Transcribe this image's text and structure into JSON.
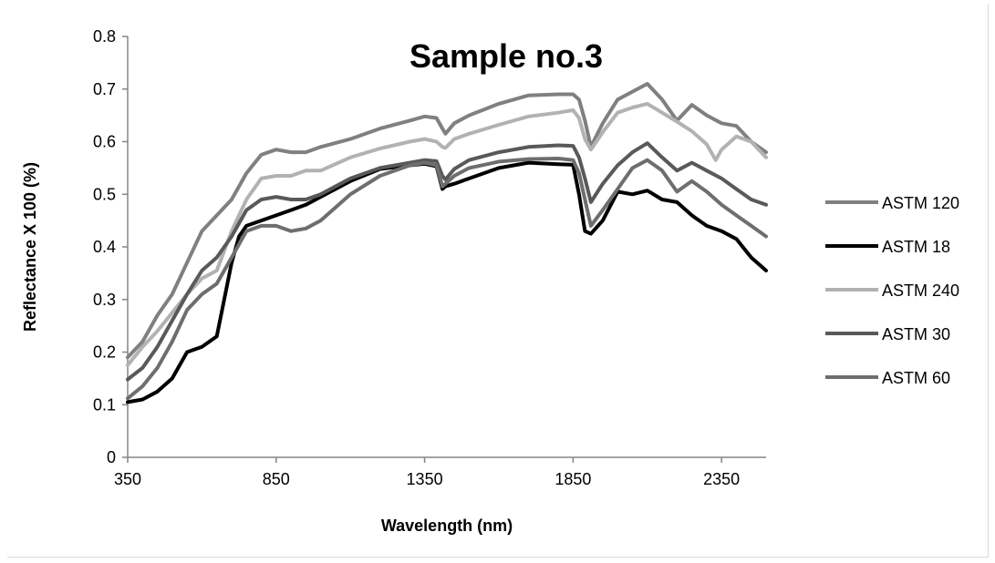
{
  "chart_data": {
    "type": "line",
    "title": "Sample no.3",
    "xlabel": "Wavelength (nm)",
    "ylabel": "Reflectance X 100  (%)",
    "xlim": [
      350,
      2500
    ],
    "ylim": [
      0,
      0.8
    ],
    "xticks": [
      350,
      850,
      1350,
      1850,
      2350
    ],
    "xtick_labels": [
      "350",
      "850",
      "1350",
      "1850",
      "2350"
    ],
    "yticks": [
      0,
      0.1,
      0.2,
      0.3,
      0.4,
      0.5,
      0.6,
      0.7,
      0.8
    ],
    "ytick_labels": [
      "0",
      "0.1",
      "0.2",
      "0.3",
      "0.4",
      "0.5",
      "0.6",
      "0.7",
      "0.8"
    ],
    "grid": false,
    "legend_position": "right",
    "series": [
      {
        "name": "ASTM 120",
        "color": "#808080",
        "x": [
          350,
          400,
          450,
          500,
          550,
          600,
          650,
          700,
          750,
          800,
          850,
          900,
          950,
          1000,
          1100,
          1200,
          1300,
          1350,
          1390,
          1410,
          1420,
          1450,
          1500,
          1600,
          1700,
          1800,
          1850,
          1870,
          1890,
          1910,
          1950,
          2000,
          2050,
          2100,
          2150,
          2200,
          2250,
          2300,
          2350,
          2400,
          2450,
          2500
        ],
        "y": [
          0.19,
          0.22,
          0.27,
          0.31,
          0.37,
          0.43,
          0.46,
          0.49,
          0.54,
          0.575,
          0.585,
          0.58,
          0.58,
          0.59,
          0.605,
          0.625,
          0.64,
          0.648,
          0.645,
          0.625,
          0.615,
          0.635,
          0.65,
          0.672,
          0.688,
          0.69,
          0.69,
          0.68,
          0.64,
          0.59,
          0.635,
          0.68,
          0.695,
          0.71,
          0.68,
          0.64,
          0.67,
          0.65,
          0.635,
          0.63,
          0.6,
          0.58
        ]
      },
      {
        "name": "ASTM 18",
        "color": "#000000",
        "x": [
          350,
          400,
          450,
          500,
          550,
          600,
          650,
          700,
          725,
          750,
          800,
          850,
          900,
          950,
          1000,
          1100,
          1200,
          1300,
          1350,
          1390,
          1410,
          1420,
          1450,
          1500,
          1600,
          1700,
          1800,
          1850,
          1870,
          1890,
          1910,
          1950,
          2000,
          2050,
          2100,
          2150,
          2200,
          2250,
          2300,
          2350,
          2400,
          2450,
          2500
        ],
        "y": [
          0.105,
          0.11,
          0.125,
          0.15,
          0.2,
          0.21,
          0.23,
          0.37,
          0.42,
          0.44,
          0.45,
          0.46,
          0.47,
          0.48,
          0.495,
          0.525,
          0.548,
          0.555,
          0.558,
          0.553,
          0.51,
          0.515,
          0.52,
          0.53,
          0.55,
          0.56,
          0.557,
          0.556,
          0.5,
          0.43,
          0.425,
          0.45,
          0.505,
          0.5,
          0.507,
          0.49,
          0.485,
          0.46,
          0.44,
          0.43,
          0.415,
          0.38,
          0.355
        ]
      },
      {
        "name": "ASTM 240",
        "color": "#b2b2b2",
        "x": [
          350,
          400,
          450,
          500,
          550,
          600,
          650,
          700,
          750,
          800,
          850,
          900,
          950,
          1000,
          1100,
          1200,
          1300,
          1350,
          1390,
          1410,
          1420,
          1450,
          1500,
          1600,
          1700,
          1800,
          1850,
          1870,
          1890,
          1910,
          1950,
          2000,
          2050,
          2100,
          2150,
          2200,
          2250,
          2300,
          2330,
          2350,
          2400,
          2450,
          2500
        ],
        "y": [
          0.175,
          0.21,
          0.24,
          0.275,
          0.31,
          0.34,
          0.355,
          0.43,
          0.49,
          0.53,
          0.535,
          0.535,
          0.545,
          0.545,
          0.57,
          0.587,
          0.6,
          0.605,
          0.6,
          0.59,
          0.588,
          0.605,
          0.615,
          0.632,
          0.648,
          0.655,
          0.66,
          0.645,
          0.605,
          0.585,
          0.618,
          0.655,
          0.665,
          0.672,
          0.655,
          0.638,
          0.62,
          0.595,
          0.565,
          0.585,
          0.61,
          0.6,
          0.57
        ]
      },
      {
        "name": "ASTM 30",
        "color": "#595959",
        "x": [
          350,
          400,
          450,
          500,
          550,
          600,
          650,
          700,
          750,
          800,
          850,
          900,
          950,
          1000,
          1100,
          1200,
          1300,
          1350,
          1390,
          1410,
          1420,
          1450,
          1500,
          1600,
          1700,
          1800,
          1850,
          1870,
          1890,
          1910,
          1950,
          2000,
          2050,
          2100,
          2150,
          2200,
          2250,
          2300,
          2350,
          2400,
          2450,
          2500
        ],
        "y": [
          0.148,
          0.17,
          0.21,
          0.26,
          0.31,
          0.355,
          0.38,
          0.42,
          0.47,
          0.49,
          0.495,
          0.49,
          0.49,
          0.5,
          0.53,
          0.55,
          0.56,
          0.565,
          0.563,
          0.535,
          0.528,
          0.548,
          0.565,
          0.58,
          0.59,
          0.593,
          0.592,
          0.57,
          0.53,
          0.485,
          0.52,
          0.555,
          0.58,
          0.597,
          0.57,
          0.545,
          0.56,
          0.545,
          0.53,
          0.51,
          0.49,
          0.48
        ]
      },
      {
        "name": "ASTM 60",
        "color": "#6e6e6e",
        "x": [
          350,
          400,
          450,
          500,
          550,
          600,
          650,
          700,
          750,
          800,
          850,
          900,
          950,
          1000,
          1100,
          1200,
          1300,
          1350,
          1390,
          1410,
          1420,
          1450,
          1500,
          1600,
          1700,
          1800,
          1850,
          1870,
          1890,
          1910,
          1950,
          2000,
          2050,
          2100,
          2150,
          2200,
          2250,
          2300,
          2350,
          2400,
          2450,
          2500
        ],
        "y": [
          0.112,
          0.135,
          0.17,
          0.22,
          0.28,
          0.31,
          0.33,
          0.38,
          0.43,
          0.44,
          0.44,
          0.43,
          0.435,
          0.45,
          0.5,
          0.535,
          0.555,
          0.56,
          0.555,
          0.515,
          0.52,
          0.535,
          0.55,
          0.562,
          0.567,
          0.568,
          0.565,
          0.54,
          0.49,
          0.44,
          0.47,
          0.51,
          0.55,
          0.565,
          0.545,
          0.505,
          0.525,
          0.505,
          0.48,
          0.46,
          0.44,
          0.42
        ]
      }
    ]
  }
}
